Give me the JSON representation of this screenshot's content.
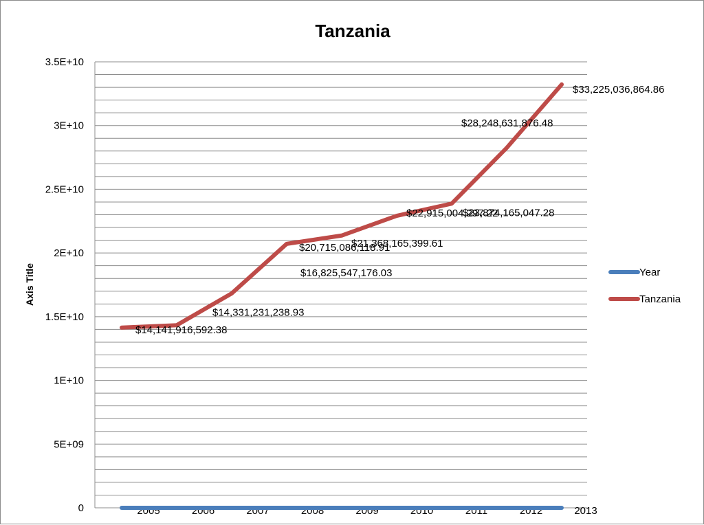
{
  "chart_data": {
    "type": "line",
    "title": "Tanzania",
    "ylabel": "Axis Title",
    "ylim": [
      0,
      35000000000
    ],
    "y_ticks": [
      "0",
      "5E+09",
      "1E+10",
      "1.5E+10",
      "2E+10",
      "2.5E+10",
      "3E+10",
      "3.5E+10"
    ],
    "y_tick_values": [
      0,
      5000000000,
      10000000000,
      15000000000,
      20000000000,
      25000000000,
      30000000000,
      35000000000
    ],
    "categories": [
      "2005",
      "2006",
      "2007",
      "2008",
      "2009",
      "2010",
      "2011",
      "2012",
      "2013"
    ],
    "series": [
      {
        "name": "Year",
        "color": "#4a7ebb",
        "values": [
          2005,
          2006,
          2007,
          2008,
          2009,
          2010,
          2011,
          2012,
          2013
        ],
        "labels": []
      },
      {
        "name": "Tanzania",
        "color": "#be4b48",
        "values": [
          14141916592.38,
          14331231238.93,
          16825547176.03,
          20715086118.91,
          21368165399.61,
          22915004297.22,
          23874165047.28,
          28248631876.48,
          33225036864.86
        ],
        "labels": [
          "$14,141,916,592.38",
          "$14,331,231,238.93",
          "$16,825,547,176.03",
          "$20,715,086,118.91",
          "$21,368,165,399.61",
          "$22,915,004,297.22",
          "$23,874,165,047.28",
          "$28,248,631,876.48",
          "$33,225,036,864.86"
        ]
      }
    ],
    "grid": true,
    "legend_position": "right"
  }
}
